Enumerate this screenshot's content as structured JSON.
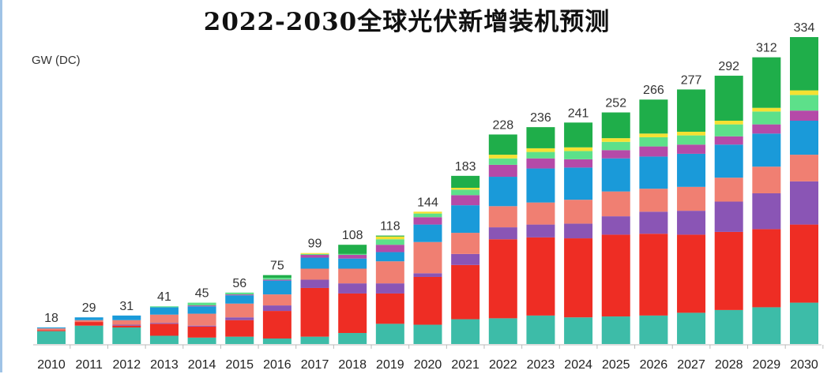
{
  "chart_data": {
    "type": "bar",
    "stacked": true,
    "title": "2022-2030全球光伏新增装机预测",
    "ylabel": "GW (DC)",
    "xlabel": "",
    "ylim": [
      0,
      334
    ],
    "grid": false,
    "legend": "none",
    "categories": [
      "2010",
      "2011",
      "2012",
      "2013",
      "2014",
      "2015",
      "2016",
      "2017",
      "2018",
      "2019",
      "2020",
      "2021",
      "2022",
      "2023",
      "2024",
      "2025",
      "2026",
      "2027",
      "2028",
      "2029",
      "2030"
    ],
    "totals": [
      18,
      29,
      31,
      41,
      45,
      56,
      75,
      99,
      108,
      118,
      144,
      183,
      228,
      236,
      241,
      252,
      266,
      277,
      292,
      312,
      334
    ],
    "series": [
      {
        "color": "#3dbca8",
        "values": [
          14,
          20,
          18,
          9,
          7,
          8,
          6,
          8,
          12,
          22,
          21,
          27,
          28,
          31,
          29,
          30,
          31,
          34,
          37,
          40,
          45
        ]
      },
      {
        "color": "#ee2d24",
        "values": [
          1,
          4,
          2,
          13,
          12,
          18,
          30,
          53,
          43,
          33,
          52,
          59,
          86,
          85,
          86,
          89,
          89,
          85,
          85,
          85,
          85
        ]
      },
      {
        "color": "#8a55b5",
        "values": [
          0,
          0,
          1,
          1,
          1,
          3,
          6,
          9,
          11,
          11,
          4,
          12,
          13,
          14,
          16,
          20,
          24,
          26,
          33,
          39,
          47
        ]
      },
      {
        "color": "#f07f72",
        "values": [
          2,
          2,
          5,
          9,
          13,
          15,
          12,
          12,
          16,
          24,
          34,
          23,
          23,
          24,
          26,
          27,
          25,
          26,
          26,
          29,
          29
        ]
      },
      {
        "color": "#1a9ad9",
        "values": [
          1,
          3,
          5,
          8,
          8,
          9,
          15,
          12,
          11,
          10,
          19,
          30,
          32,
          37,
          35,
          36,
          35,
          36,
          36,
          36,
          37
        ]
      },
      {
        "color": "#b54aa8",
        "values": [
          0,
          0,
          0,
          0,
          1,
          1,
          1,
          3,
          4,
          8,
          8,
          11,
          13,
          11,
          9,
          9,
          11,
          10,
          9,
          10,
          11
        ]
      },
      {
        "color": "#5de08a",
        "values": [
          0,
          0,
          0,
          1,
          3,
          2,
          2,
          1,
          1,
          6,
          4,
          6,
          7,
          7,
          9,
          9,
          10,
          10,
          13,
          14,
          17
        ]
      },
      {
        "color": "#f5e132",
        "values": [
          0,
          0,
          0,
          0,
          0,
          0,
          0,
          1,
          0,
          3,
          2,
          2,
          4,
          4,
          4,
          4,
          4,
          4,
          4,
          4,
          5
        ]
      },
      {
        "color": "#1fae4a",
        "values": [
          0,
          0,
          0,
          0,
          0,
          0,
          3,
          0,
          10,
          1,
          0,
          13,
          22,
          23,
          27,
          28,
          37,
          46,
          49,
          55,
          58
        ]
      }
    ]
  }
}
